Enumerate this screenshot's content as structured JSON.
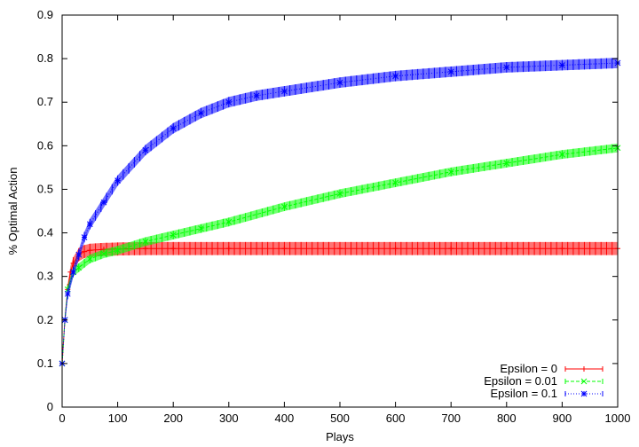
{
  "chart_data": {
    "type": "line",
    "title": "",
    "xlabel": "Plays",
    "ylabel": "% Optimal Action",
    "xlim": [
      0,
      1000
    ],
    "ylim": [
      0,
      0.9
    ],
    "x_ticks": [
      0,
      100,
      200,
      300,
      400,
      500,
      600,
      700,
      800,
      900,
      1000
    ],
    "y_ticks": [
      0,
      0.1,
      0.2,
      0.3,
      0.4,
      0.5,
      0.6,
      0.7,
      0.8,
      0.9
    ],
    "grid": false,
    "legend_position": "bottom-right",
    "series": [
      {
        "name": "Epsilon = 0",
        "color": "#ff0000",
        "marker": "plus",
        "line_style": "solid",
        "x": [
          0,
          5,
          10,
          15,
          20,
          30,
          40,
          50,
          75,
          100,
          150,
          200,
          300,
          400,
          500,
          600,
          700,
          800,
          900,
          1000
        ],
        "y": [
          0.1,
          0.2,
          0.27,
          0.31,
          0.33,
          0.35,
          0.357,
          0.36,
          0.362,
          0.363,
          0.364,
          0.364,
          0.364,
          0.364,
          0.364,
          0.364,
          0.364,
          0.364,
          0.364,
          0.364
        ],
        "error": [
          0,
          0.012,
          0.013,
          0.014,
          0.014,
          0.015,
          0.015,
          0.015,
          0.015,
          0.015,
          0.015,
          0.015,
          0.015,
          0.015,
          0.015,
          0.015,
          0.015,
          0.015,
          0.015,
          0.015
        ]
      },
      {
        "name": "Epsilon = 0.01",
        "color": "#00ff00",
        "marker": "x",
        "line_style": "dashed",
        "x": [
          0,
          5,
          10,
          20,
          30,
          50,
          75,
          100,
          150,
          200,
          250,
          300,
          400,
          500,
          600,
          700,
          800,
          900,
          1000
        ],
        "y": [
          0.1,
          0.2,
          0.27,
          0.31,
          0.32,
          0.34,
          0.352,
          0.36,
          0.38,
          0.395,
          0.41,
          0.425,
          0.46,
          0.49,
          0.515,
          0.54,
          0.56,
          0.58,
          0.595
        ],
        "error": [
          0,
          0.01,
          0.01,
          0.01,
          0.01,
          0.01,
          0.01,
          0.01,
          0.01,
          0.01,
          0.01,
          0.01,
          0.01,
          0.01,
          0.01,
          0.01,
          0.01,
          0.01,
          0.01
        ]
      },
      {
        "name": "Epsilon = 0.1",
        "color": "#0000ff",
        "marker": "star",
        "line_style": "dotted",
        "x": [
          0,
          5,
          10,
          20,
          30,
          40,
          50,
          75,
          100,
          150,
          200,
          250,
          300,
          350,
          400,
          500,
          600,
          700,
          800,
          900,
          1000
        ],
        "y": [
          0.1,
          0.2,
          0.26,
          0.31,
          0.35,
          0.39,
          0.42,
          0.47,
          0.52,
          0.59,
          0.64,
          0.675,
          0.7,
          0.715,
          0.725,
          0.745,
          0.76,
          0.77,
          0.78,
          0.785,
          0.79
        ],
        "error": [
          0,
          0.01,
          0.012,
          0.012,
          0.012,
          0.012,
          0.012,
          0.012,
          0.012,
          0.012,
          0.012,
          0.012,
          0.012,
          0.012,
          0.012,
          0.012,
          0.012,
          0.012,
          0.012,
          0.012,
          0.012
        ]
      }
    ]
  }
}
